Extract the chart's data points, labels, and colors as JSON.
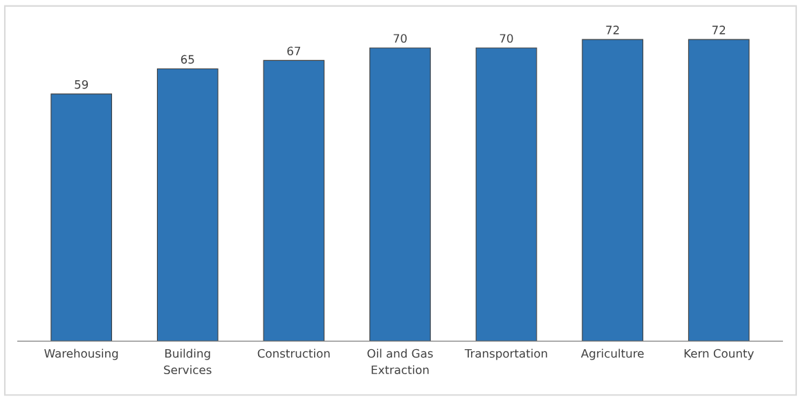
{
  "chart_data": {
    "type": "bar",
    "categories": [
      "Warehousing",
      "Building\nServices",
      "Construction",
      "Oil and Gas\nExtraction",
      "Transportation",
      "Agriculture",
      "Kern County"
    ],
    "values": [
      59,
      65,
      67,
      70,
      70,
      72,
      72
    ],
    "color": "#2e75b6",
    "ylim": [
      0,
      80
    ],
    "data_labels": true,
    "grid": false,
    "legend": false
  }
}
